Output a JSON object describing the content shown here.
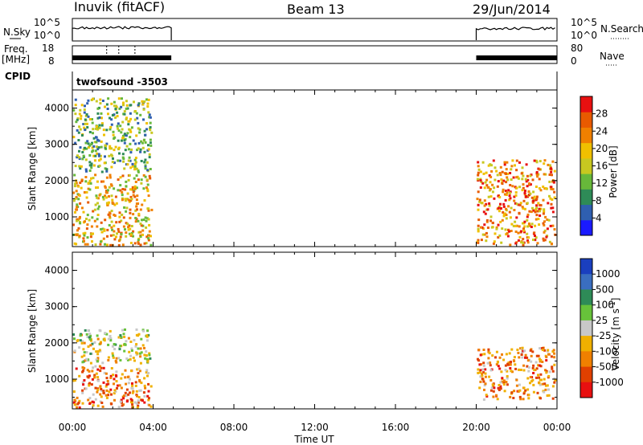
{
  "header": {
    "station": "Inuvik (fitACF)",
    "beam": "Beam 13",
    "date": "29/Jun/2014"
  },
  "top_panel": {
    "left_label": "N.Sky",
    "left_tick_hi": "10^5",
    "left_tick_lo": "10^0",
    "right_label": "N.Search",
    "right_tick_hi": "10^5",
    "right_tick_lo": "10^0"
  },
  "freq_panel": {
    "left_label_1": "Freq.",
    "left_label_2": "[MHz]",
    "left_tick_hi": "18",
    "left_tick_lo": "8",
    "right_label": "Nave",
    "right_tick_hi": "80",
    "right_tick_lo": "0"
  },
  "cpid": {
    "label": "CPID",
    "value": "twofsound -3503"
  },
  "colors": {
    "power": [
      "#1a1aff",
      "#2f5fb0",
      "#2e8b57",
      "#67b83a",
      "#c8c820",
      "#f0c000",
      "#f08000",
      "#e85a00",
      "#e81010"
    ],
    "velocity": [
      "#1a3fbf",
      "#3a6ec0",
      "#2e8b57",
      "#67c23a",
      "#c8c8c8",
      "#f0b000",
      "#f08000",
      "#e04000",
      "#e81010"
    ]
  },
  "chart_data": [
    {
      "type": "heatmap",
      "title": "",
      "xlabel": "",
      "ylabel": "Slant Range [km]",
      "x_ticks": [
        "00:00",
        "04:00",
        "08:00",
        "12:00",
        "16:00",
        "20:00",
        "00:00"
      ],
      "y_ticks": [
        "1000",
        "2000",
        "3000",
        "4000"
      ],
      "ylim": [
        180,
        4500
      ],
      "colorbar": {
        "label": "Power [dB]",
        "ticks": [
          "4",
          "8",
          "12",
          "16",
          "20",
          "24",
          "28"
        ]
      },
      "data_intervals": [
        {
          "start": "00:00",
          "end": "04:00"
        },
        {
          "start": "20:00",
          "end": "00:00"
        }
      ],
      "features": [
        {
          "interval": 0,
          "range_from": 180,
          "range_to": 2200,
          "dominant_power_db": 20
        },
        {
          "interval": 0,
          "range_from": 2200,
          "range_to": 4300,
          "dominant_power_db": 12
        },
        {
          "interval": 1,
          "range_from": 180,
          "range_to": 2600,
          "dominant_power_db": 22
        }
      ]
    },
    {
      "type": "heatmap",
      "title": "",
      "xlabel": "Time UT",
      "ylabel": "Slant Range [km]",
      "x_ticks": [
        "00:00",
        "04:00",
        "08:00",
        "12:00",
        "16:00",
        "20:00",
        "00:00"
      ],
      "y_ticks": [
        "1000",
        "2000",
        "3000",
        "4000"
      ],
      "ylim": [
        180,
        4500
      ],
      "colorbar": {
        "label": "Velocity [m s^-1]",
        "ticks": [
          "1000",
          "500",
          "100",
          "25",
          "-25",
          "-100",
          "-500",
          "-1000"
        ]
      },
      "data_intervals": [
        {
          "start": "00:00",
          "end": "04:00"
        },
        {
          "start": "20:00",
          "end": "00:00"
        }
      ],
      "features": [
        {
          "interval": 0,
          "range_from": 180,
          "range_to": 1400,
          "dominant_velocity": -100
        },
        {
          "interval": 0,
          "range_from": 1400,
          "range_to": 2400,
          "dominant_velocity": 0
        },
        {
          "interval": 1,
          "range_from": 400,
          "range_to": 1900,
          "dominant_velocity": -100
        }
      ]
    }
  ]
}
